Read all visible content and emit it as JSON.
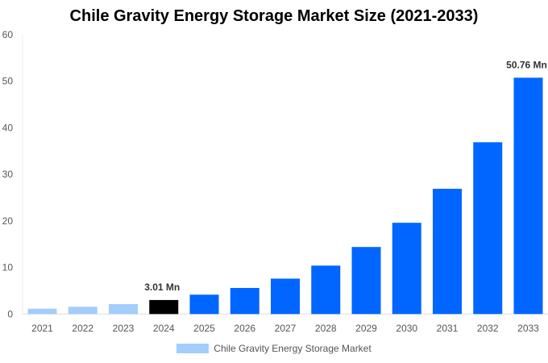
{
  "chart_data": {
    "type": "bar",
    "title": "Chile Gravity Energy Storage Market Size (2021-2033)",
    "categories": [
      "2021",
      "2022",
      "2023",
      "2024",
      "2025",
      "2026",
      "2027",
      "2028",
      "2029",
      "2030",
      "2031",
      "2032",
      "2033"
    ],
    "series": [
      {
        "name": "Chile Gravity Energy Storage Market",
        "values": [
          1.15,
          1.56,
          2.13,
          3.01,
          4.16,
          5.6,
          7.6,
          10.4,
          14.4,
          19.6,
          26.9,
          36.9,
          50.76
        ]
      }
    ],
    "bar_colors": [
      "#a3cdfc",
      "#a3cdfc",
      "#a3cdfc",
      "#000000",
      "#0066ff",
      "#0066ff",
      "#0066ff",
      "#0066ff",
      "#0066ff",
      "#0066ff",
      "#0066ff",
      "#0066ff",
      "#0066ff"
    ],
    "data_labels": [
      {
        "category": "2024",
        "text": "3.01 Mn"
      },
      {
        "category": "2033",
        "text": "50.76 Mn"
      }
    ],
    "yticks": [
      "0",
      "10",
      "20",
      "30",
      "40",
      "50",
      "60"
    ],
    "ylim": [
      0,
      60
    ],
    "xlabel": "",
    "ylabel": "",
    "grid": false,
    "legend_placement": "bottom",
    "legend_color": "#a3cdfc"
  }
}
